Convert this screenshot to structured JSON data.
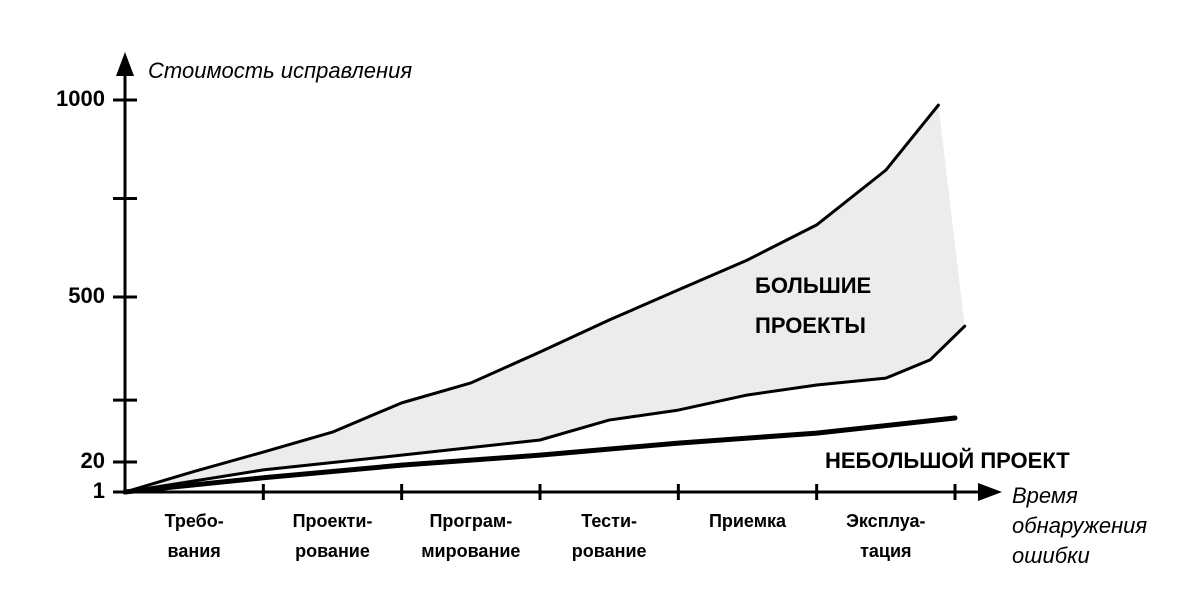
{
  "chart_data": {
    "type": "line",
    "y_label": "Стоимость исправления",
    "x_label": [
      "Время",
      "обнаружения",
      "ошибки"
    ],
    "categories": [
      [
        "Требо-",
        "вания"
      ],
      [
        "Проекти-",
        "рование"
      ],
      [
        "Програм-",
        "мирование"
      ],
      [
        "Тести-",
        "рование"
      ],
      [
        "Приемка"
      ],
      [
        "Эксплуа-",
        "тация"
      ]
    ],
    "xlim": [
      0,
      6
    ],
    "yticks": [
      1,
      20,
      500,
      1000
    ],
    "minor_yticks": [
      200,
      750
    ],
    "annotations": [
      [
        "БОЛЬШИЕ",
        "ПРОЕКТЫ"
      ],
      [
        "НЕБОЛЬШОЙ ПРОЕКТ"
      ]
    ],
    "fill_color": "#ececec",
    "series": [
      {
        "x": [
          0,
          0.5,
          1,
          1.5,
          2,
          2.5,
          3,
          3.5,
          4,
          4.5,
          5,
          5.5,
          5.88
        ],
        "values": [
          1,
          14,
          49,
          107,
          192,
          250,
          340,
          433,
          518,
          594,
          683,
          822,
          987
        ],
        "color": "#000000",
        "width": 3
      },
      {
        "x": [
          0,
          1,
          2,
          3,
          3.5,
          4,
          4.5,
          5,
          5.5,
          5.82,
          6.07
        ],
        "values": [
          1,
          15,
          40,
          84,
          142,
          171,
          215,
          244,
          264,
          317,
          415
        ],
        "color": "#000000",
        "width": 3
      },
      {
        "x": [
          0,
          1,
          2,
          3,
          4,
          5,
          6
        ],
        "values": [
          1,
          10,
          18,
          40,
          75,
          104,
          148
        ],
        "color": "#000000",
        "width": 5
      }
    ]
  }
}
